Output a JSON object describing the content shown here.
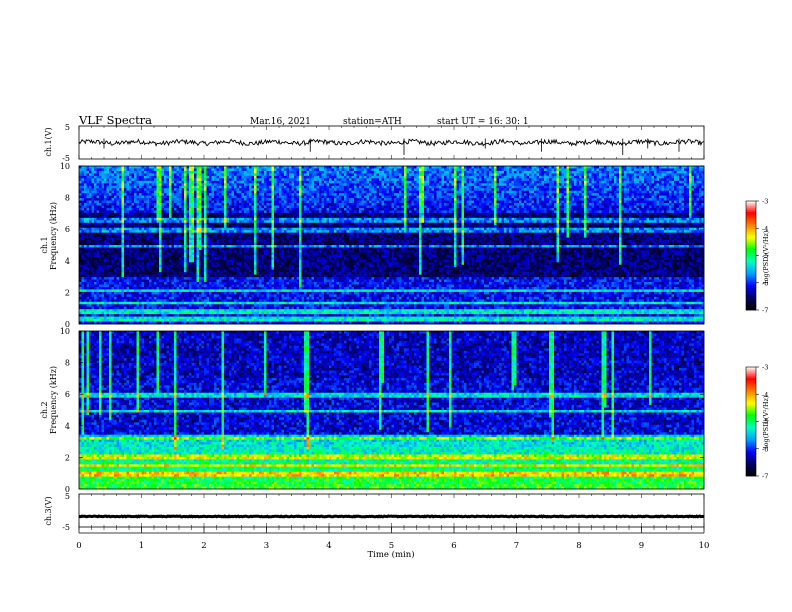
{
  "header": {
    "title": "VLF  Spectra",
    "date": "Mar.16, 2021",
    "station": "station=ATH",
    "start": "start  UT  =    16: 30: 1"
  },
  "chart_data": {
    "type": "heatmap",
    "xlabel": "Time  (min)",
    "xlim": [
      0,
      10
    ],
    "x_ticks": [
      "0",
      "1",
      "2",
      "3",
      "4",
      "5",
      "6",
      "7",
      "8",
      "9",
      "10"
    ],
    "panels": [
      {
        "id": "ch1-voltage",
        "type": "line",
        "ylabel": "ch.1(V)",
        "ylim": [
          -5,
          5
        ],
        "y_ticks": [
          "5",
          "-5"
        ],
        "level": 0.0,
        "color": "#000000"
      },
      {
        "id": "ch1-spectrogram",
        "type": "heatmap",
        "ylabel_channel": "ch.1",
        "ylabel": "Frequency  (kHz)",
        "ylim": [
          0,
          10
        ],
        "y_ticks": [
          "10",
          "8",
          "6",
          "4",
          "2",
          "0"
        ],
        "bright_bands_khz": [
          0.3,
          0.8,
          1.3,
          2.1,
          4.9,
          5.9,
          6.6
        ],
        "colorbar_label": "log(PSD)(V²/Hz)",
        "colorbar_range": [
          -7,
          -3
        ],
        "colorbar_ticks": [
          "-3",
          "-4",
          "-5",
          "-6",
          "-7"
        ]
      },
      {
        "id": "ch2-spectrogram",
        "type": "heatmap",
        "ylabel_channel": "ch.2",
        "ylabel": "Frequency  (kHz)",
        "ylim": [
          0,
          10
        ],
        "y_ticks": [
          "10",
          "8",
          "6",
          "4",
          "2",
          "0"
        ],
        "bright_bands_khz": [
          0.9,
          1.5,
          2.0,
          3.2,
          4.9,
          5.9
        ],
        "colorbar_label": "log(PSD)(V²/Hz)",
        "colorbar_range": [
          -7,
          -3
        ],
        "colorbar_ticks": [
          "-3",
          "-4",
          "-5",
          "-6",
          "-7"
        ]
      },
      {
        "id": "ch3-voltage",
        "type": "line",
        "ylabel": "ch.3(V)",
        "ylim": [
          -5,
          5
        ],
        "y_ticks": [
          "5",
          "-5"
        ],
        "level": -1.8,
        "color": "#000000"
      }
    ],
    "colormap": [
      "#000000",
      "#000060",
      "#0000ff",
      "#00a0ff",
      "#00ffc0",
      "#00ff00",
      "#ffff00",
      "#ff8000",
      "#ff0000",
      "#ffffff"
    ]
  }
}
